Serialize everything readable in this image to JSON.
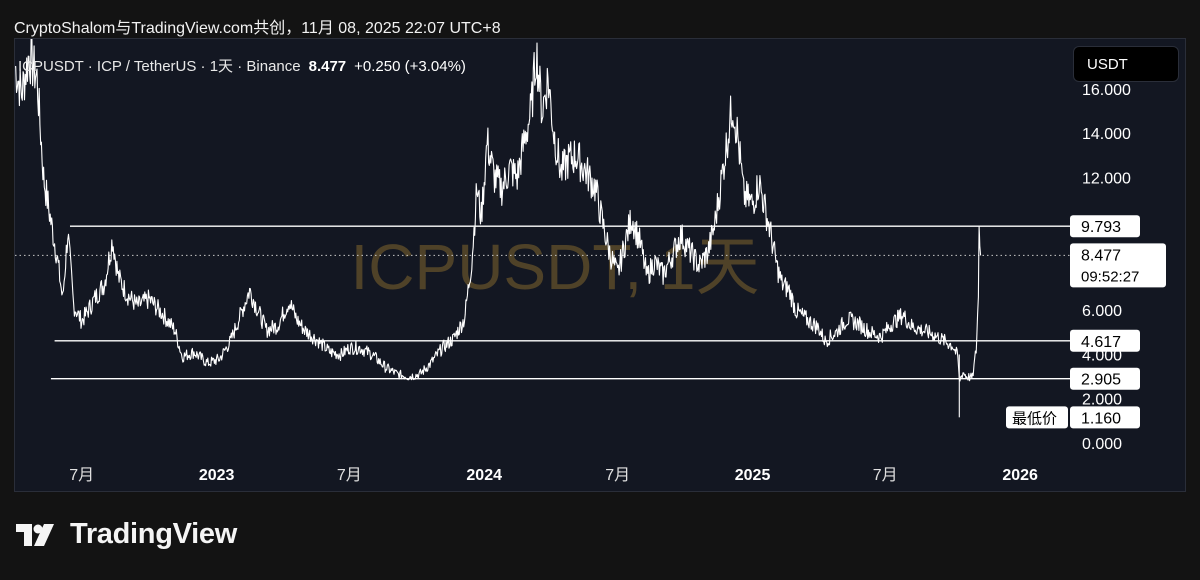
{
  "header": {
    "caption": "CryptoShalom与TradingView.com共创，11月 08, 2025 22:07 UTC+8"
  },
  "symbol": {
    "description": "ICPUSDT · ICP / TetherUS · 1天 · Binance",
    "last_price": "8.477",
    "change": "+0.250 (+3.04%)"
  },
  "unit_badge": "USDT",
  "watermark": "ICPUSDT, 1天",
  "footer": {
    "brand": "TradingView"
  },
  "colors": {
    "background": "#131722",
    "price_line": "#ffffff",
    "level_line": "#ffffff",
    "watermark": "#5a4a2a",
    "text": "#ffffff"
  },
  "chart_data": {
    "type": "line",
    "title": "",
    "xlabel": "",
    "ylabel": "",
    "ylim": [
      0,
      17.8
    ],
    "y_ticks": [
      {
        "value": 0,
        "label": "0.000"
      },
      {
        "value": 2,
        "label": "2.000"
      },
      {
        "value": 4,
        "label": "4.000"
      },
      {
        "value": 6,
        "label": "6.000"
      },
      {
        "value": 12,
        "label": "12.000"
      },
      {
        "value": 14,
        "label": "14.000"
      },
      {
        "value": 16,
        "label": "16.000"
      }
    ],
    "x_ticks": [
      {
        "date": "2022-07-01",
        "label": "7月",
        "bold": false
      },
      {
        "date": "2023-01-01",
        "label": "2023",
        "bold": true
      },
      {
        "date": "2023-07-01",
        "label": "7月",
        "bold": false
      },
      {
        "date": "2024-01-01",
        "label": "2024",
        "bold": true
      },
      {
        "date": "2024-07-01",
        "label": "7月",
        "bold": false
      },
      {
        "date": "2025-01-01",
        "label": "2025",
        "bold": true
      },
      {
        "date": "2025-07-01",
        "label": "7月",
        "bold": false
      },
      {
        "date": "2026-01-01",
        "label": "2026",
        "bold": true
      }
    ],
    "x_range": [
      "2022-04-01",
      "2026-03-10"
    ],
    "levels": [
      {
        "value": 9.793,
        "label": "9.793",
        "start": "2022-06-15"
      },
      {
        "value": 4.617,
        "label": "4.617",
        "start": "2022-05-25"
      },
      {
        "value": 2.905,
        "label": "2.905",
        "start": "2022-05-20"
      }
    ],
    "current_price": {
      "value": 8.477,
      "label": "8.477",
      "countdown": "09:52:27"
    },
    "lowest": {
      "value": 1.16,
      "label": "1.160",
      "tag": "最低价"
    },
    "series": [
      {
        "points": [
          [
            "2022-04-01",
            17.0
          ],
          [
            "2022-04-10",
            15.8
          ],
          [
            "2022-04-20",
            17.5
          ],
          [
            "2022-05-01",
            16.5
          ],
          [
            "2022-05-10",
            12.0
          ],
          [
            "2022-05-20",
            10.0
          ],
          [
            "2022-05-28",
            8.5
          ],
          [
            "2022-06-05",
            6.5
          ],
          [
            "2022-06-12",
            9.5
          ],
          [
            "2022-06-20",
            6.2
          ],
          [
            "2022-07-01",
            5.5
          ],
          [
            "2022-07-10",
            6.0
          ],
          [
            "2022-07-20",
            6.6
          ],
          [
            "2022-08-01",
            7.2
          ],
          [
            "2022-08-12",
            9.2
          ],
          [
            "2022-08-20",
            7.5
          ],
          [
            "2022-09-01",
            6.7
          ],
          [
            "2022-09-15",
            6.2
          ],
          [
            "2022-10-01",
            6.5
          ],
          [
            "2022-10-20",
            5.8
          ],
          [
            "2022-11-05",
            5.1
          ],
          [
            "2022-11-15",
            3.9
          ],
          [
            "2022-12-01",
            4.1
          ],
          [
            "2022-12-20",
            3.6
          ],
          [
            "2023-01-05",
            3.8
          ],
          [
            "2023-01-20",
            4.6
          ],
          [
            "2023-02-05",
            6.0
          ],
          [
            "2023-02-15",
            6.9
          ],
          [
            "2023-02-25",
            6.1
          ],
          [
            "2023-03-10",
            5.1
          ],
          [
            "2023-03-25",
            5.3
          ],
          [
            "2023-04-10",
            6.4
          ],
          [
            "2023-04-20",
            5.6
          ],
          [
            "2023-05-01",
            5.1
          ],
          [
            "2023-05-20",
            4.6
          ],
          [
            "2023-06-05",
            4.1
          ],
          [
            "2023-06-20",
            4.0
          ],
          [
            "2023-07-01",
            4.3
          ],
          [
            "2023-07-15",
            4.3
          ],
          [
            "2023-08-01",
            4.0
          ],
          [
            "2023-08-20",
            3.4
          ],
          [
            "2023-09-05",
            3.1
          ],
          [
            "2023-09-20",
            3.0
          ],
          [
            "2023-10-05",
            3.1
          ],
          [
            "2023-10-20",
            3.6
          ],
          [
            "2023-11-05",
            4.3
          ],
          [
            "2023-11-20",
            4.7
          ],
          [
            "2023-12-05",
            5.6
          ],
          [
            "2023-12-15",
            8.2
          ],
          [
            "2023-12-22",
            11.5
          ],
          [
            "2023-12-28",
            10.2
          ],
          [
            "2024-01-05",
            13.6
          ],
          [
            "2024-01-15",
            12.0
          ],
          [
            "2024-01-25",
            11.5
          ],
          [
            "2024-02-05",
            12.4
          ],
          [
            "2024-02-15",
            12.0
          ],
          [
            "2024-02-25",
            13.7
          ],
          [
            "2024-03-05",
            15.0
          ],
          [
            "2024-03-12",
            17.7
          ],
          [
            "2024-03-20",
            15.0
          ],
          [
            "2024-03-28",
            16.5
          ],
          [
            "2024-04-05",
            14.0
          ],
          [
            "2024-04-15",
            12.2
          ],
          [
            "2024-04-25",
            12.8
          ],
          [
            "2024-05-05",
            13.0
          ],
          [
            "2024-05-20",
            12.2
          ],
          [
            "2024-06-01",
            11.5
          ],
          [
            "2024-06-10",
            10.0
          ],
          [
            "2024-06-20",
            8.6
          ],
          [
            "2024-07-01",
            7.6
          ],
          [
            "2024-07-10",
            8.9
          ],
          [
            "2024-07-20",
            10.2
          ],
          [
            "2024-08-01",
            9.0
          ],
          [
            "2024-08-10",
            7.5
          ],
          [
            "2024-08-20",
            8.2
          ],
          [
            "2024-09-01",
            7.6
          ],
          [
            "2024-09-15",
            8.6
          ],
          [
            "2024-09-25",
            9.4
          ],
          [
            "2024-10-05",
            8.8
          ],
          [
            "2024-10-20",
            8.0
          ],
          [
            "2024-11-01",
            8.6
          ],
          [
            "2024-11-10",
            9.8
          ],
          [
            "2024-11-20",
            12.0
          ],
          [
            "2024-12-01",
            14.5
          ],
          [
            "2024-12-05",
            15.3
          ],
          [
            "2024-12-12",
            13.8
          ],
          [
            "2024-12-20",
            11.2
          ],
          [
            "2025-01-01",
            10.8
          ],
          [
            "2025-01-10",
            11.8
          ],
          [
            "2025-01-18",
            10.6
          ],
          [
            "2025-01-25",
            9.6
          ],
          [
            "2025-02-03",
            8.0
          ],
          [
            "2025-02-10",
            7.2
          ],
          [
            "2025-02-20",
            6.9
          ],
          [
            "2025-03-01",
            6.0
          ],
          [
            "2025-03-15",
            5.6
          ],
          [
            "2025-04-01",
            5.2
          ],
          [
            "2025-04-10",
            4.6
          ],
          [
            "2025-04-25",
            5.0
          ],
          [
            "2025-05-10",
            5.6
          ],
          [
            "2025-05-25",
            5.4
          ],
          [
            "2025-06-10",
            5.0
          ],
          [
            "2025-06-25",
            4.8
          ],
          [
            "2025-07-10",
            5.4
          ],
          [
            "2025-07-25",
            5.8
          ],
          [
            "2025-08-05",
            5.3
          ],
          [
            "2025-08-20",
            5.1
          ],
          [
            "2025-09-05",
            4.9
          ],
          [
            "2025-09-20",
            4.6
          ],
          [
            "2025-10-01",
            4.4
          ],
          [
            "2025-10-08",
            3.9
          ],
          [
            "2025-10-10",
            2.8
          ],
          [
            "2025-10-15",
            3.2
          ],
          [
            "2025-10-20",
            3.0
          ],
          [
            "2025-10-28",
            2.95
          ],
          [
            "2025-11-02",
            4.2
          ],
          [
            "2025-11-05",
            6.6
          ],
          [
            "2025-11-06",
            9.79
          ],
          [
            "2025-11-07",
            8.9
          ],
          [
            "2025-11-08",
            8.477
          ]
        ],
        "spike_low": {
          "date": "2025-10-10",
          "value": 1.16
        }
      }
    ]
  }
}
